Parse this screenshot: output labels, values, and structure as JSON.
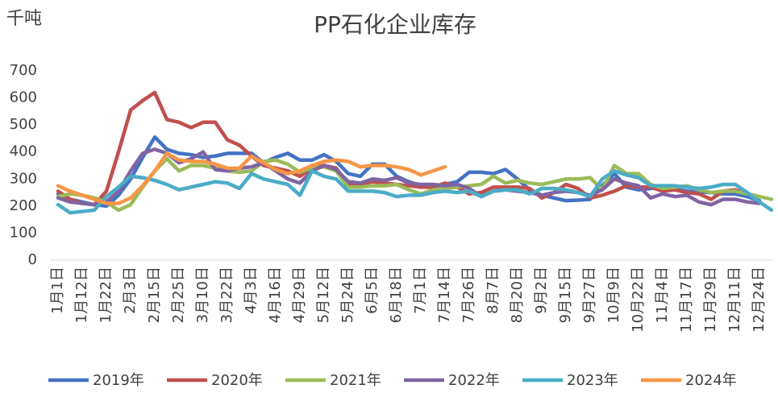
{
  "chart_data": {
    "type": "line",
    "title": "PP石化企业库存",
    "y_label": "千吨",
    "categories": [
      "1月1日",
      null,
      "1月12日",
      null,
      "1月22日",
      null,
      "2月3日",
      null,
      "2月15日",
      null,
      "2月25日",
      null,
      "3月10日",
      null,
      "3月22日",
      null,
      "4月3日",
      null,
      "4月16日",
      null,
      "4月29日",
      null,
      "5月12日",
      null,
      "5月24日",
      null,
      "6月5日",
      null,
      "6月18日",
      null,
      "7月1日",
      null,
      "7月14日",
      null,
      "7月26日",
      null,
      "8月7日",
      null,
      "8月20日",
      null,
      "9月2日",
      null,
      "9月15日",
      null,
      "9月27日",
      null,
      "10月9日",
      null,
      "10月22日",
      null,
      "11月4日",
      null,
      "11月17日",
      null,
      "11月29日",
      null,
      "12月11日",
      null,
      "12月24日",
      null
    ],
    "series": [
      {
        "name": "2019年",
        "color": "#4472c4",
        "values": [
          245,
          225,
          215,
          205,
          200,
          240,
          300,
          380,
          455,
          410,
          395,
          390,
          380,
          385,
          395,
          395,
          395,
          360,
          380,
          395,
          370,
          370,
          390,
          365,
          320,
          310,
          355,
          355,
          310,
          290,
          275,
          270,
          280,
          290,
          325,
          325,
          320,
          335,
          300,
          260,
          240,
          230,
          220,
          222,
          225,
          275,
          320,
          270,
          260,
          265,
          270,
          262,
          255,
          252,
          250,
          245,
          245,
          235,
          220,
          null
        ]
      },
      {
        "name": "2020年",
        "color": "#c0504d",
        "values": [
          255,
          225,
          210,
          205,
          255,
          400,
          555,
          590,
          620,
          520,
          510,
          490,
          510,
          510,
          445,
          425,
          385,
          350,
          340,
          330,
          310,
          340,
          350,
          340,
          280,
          280,
          290,
          285,
          280,
          275,
          270,
          270,
          285,
          270,
          245,
          250,
          270,
          270,
          270,
          265,
          230,
          250,
          280,
          265,
          230,
          240,
          255,
          275,
          270,
          270,
          255,
          260,
          250,
          245,
          225,
          255,
          260,
          245,
          null,
          null
        ]
      },
      {
        "name": "2021年",
        "color": "#9bbb59",
        "values": [
          235,
          245,
          240,
          230,
          215,
          185,
          205,
          270,
          330,
          375,
          330,
          350,
          350,
          340,
          330,
          325,
          330,
          365,
          370,
          355,
          325,
          340,
          345,
          330,
          270,
          270,
          275,
          275,
          280,
          260,
          245,
          260,
          265,
          270,
          275,
          280,
          310,
          285,
          295,
          285,
          280,
          290,
          300,
          300,
          305,
          260,
          350,
          320,
          320,
          280,
          265,
          270,
          275,
          260,
          250,
          255,
          255,
          245,
          235,
          225
        ]
      },
      {
        "name": "2022年",
        "color": "#8064a2",
        "values": [
          230,
          215,
          210,
          205,
          215,
          255,
          330,
          395,
          410,
          395,
          360,
          375,
          400,
          335,
          330,
          340,
          345,
          360,
          330,
          300,
          285,
          330,
          350,
          335,
          290,
          285,
          300,
          295,
          305,
          285,
          280,
          280,
          275,
          280,
          265,
          235,
          255,
          260,
          255,
          250,
          240,
          250,
          255,
          250,
          240,
          260,
          300,
          285,
          275,
          230,
          245,
          235,
          240,
          215,
          205,
          225,
          225,
          215,
          210,
          null
        ]
      },
      {
        "name": "2023年",
        "color": "#4bacc6",
        "values": [
          205,
          175,
          180,
          185,
          235,
          270,
          310,
          305,
          295,
          280,
          260,
          270,
          280,
          290,
          285,
          265,
          320,
          300,
          290,
          280,
          240,
          330,
          310,
          300,
          255,
          255,
          255,
          250,
          235,
          240,
          240,
          250,
          255,
          250,
          255,
          235,
          255,
          260,
          260,
          245,
          265,
          265,
          260,
          250,
          235,
          300,
          330,
          315,
          305,
          275,
          275,
          275,
          270,
          265,
          270,
          280,
          280,
          250,
          215,
          185
        ]
      },
      {
        "name": "2024年",
        "color": "#f79646",
        "values": [
          275,
          255,
          240,
          225,
          210,
          210,
          230,
          275,
          330,
          395,
          370,
          365,
          365,
          355,
          340,
          340,
          385,
          360,
          335,
          320,
          330,
          350,
          365,
          370,
          365,
          345,
          350,
          350,
          345,
          335,
          315,
          330,
          345,
          null,
          null,
          null,
          null,
          null,
          null,
          null,
          null,
          null,
          null,
          null,
          null,
          null,
          null,
          null,
          null,
          null,
          null,
          null,
          null,
          null,
          null,
          null,
          null,
          null,
          null,
          null
        ]
      }
    ],
    "ylim": [
      0,
      700
    ],
    "yticks": [
      0,
      100,
      200,
      300,
      400,
      500,
      600,
      700
    ],
    "grid": false
  }
}
